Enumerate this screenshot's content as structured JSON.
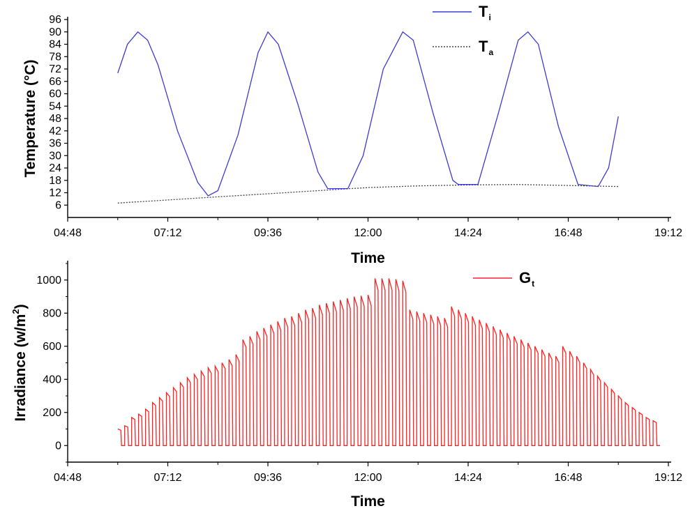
{
  "chart_data": [
    {
      "type": "line",
      "xlabel": "Time",
      "ylabel": "Temperature (°C)",
      "xlim": [
        "04:48",
        "19:12"
      ],
      "ylim": [
        0,
        96
      ],
      "x_ticks": [
        "04:48",
        "07:12",
        "09:36",
        "12:00",
        "14:24",
        "16:48",
        "19:12"
      ],
      "y_ticks": [
        "6",
        "12",
        "18",
        "24",
        "30",
        "36",
        "42",
        "48",
        "54",
        "60",
        "66",
        "72",
        "78",
        "84",
        "90",
        "96"
      ],
      "legend_position": "top-right",
      "series": [
        {
          "name_main": "T",
          "name_sub": "i",
          "color": "#3b3bd6",
          "style": "solid",
          "points": [
            [
              "06:00",
              70
            ],
            [
              "06:14",
              84
            ],
            [
              "06:29",
              90
            ],
            [
              "06:43",
              86
            ],
            [
              "06:58",
              74
            ],
            [
              "07:26",
              42
            ],
            [
              "07:55",
              17
            ],
            [
              "08:10",
              10.5
            ],
            [
              "08:24",
              13
            ],
            [
              "08:53",
              40
            ],
            [
              "09:22",
              80
            ],
            [
              "09:36",
              90
            ],
            [
              "09:51",
              84
            ],
            [
              "10:19",
              55
            ],
            [
              "10:48",
              22
            ],
            [
              "11:02",
              14
            ],
            [
              "11:31",
              14
            ],
            [
              "11:53",
              30
            ],
            [
              "12:22",
              72
            ],
            [
              "12:50",
              90
            ],
            [
              "13:05",
              86
            ],
            [
              "13:34",
              50
            ],
            [
              "14:02",
              18
            ],
            [
              "14:10",
              16
            ],
            [
              "14:38",
              16
            ],
            [
              "15:07",
              50
            ],
            [
              "15:36",
              86
            ],
            [
              "15:50",
              90
            ],
            [
              "16:05",
              84
            ],
            [
              "16:34",
              44
            ],
            [
              "17:02",
              16
            ],
            [
              "17:31",
              15
            ],
            [
              "17:46",
              24
            ],
            [
              "18:00",
              49
            ]
          ]
        },
        {
          "name_main": "T",
          "name_sub": "a",
          "color": "#444444",
          "style": "dotted",
          "points": [
            [
              "06:00",
              7
            ],
            [
              "07:12",
              8.5
            ],
            [
              "08:24",
              10
            ],
            [
              "09:36",
              11.5
            ],
            [
              "10:48",
              13
            ],
            [
              "12:00",
              14.5
            ],
            [
              "13:12",
              15.3
            ],
            [
              "14:24",
              15.8
            ],
            [
              "15:36",
              16
            ],
            [
              "16:48",
              15.5
            ],
            [
              "18:00",
              15
            ]
          ]
        }
      ]
    },
    {
      "type": "line",
      "xlabel": "Time",
      "ylabel_main": "Irradiance (w/m",
      "ylabel_sup": "2",
      "ylabel_close": ")",
      "xlim": [
        "04:48",
        "19:12"
      ],
      "ylim": [
        -100,
        1100
      ],
      "x_ticks": [
        "04:48",
        "07:12",
        "09:36",
        "12:00",
        "14:24",
        "16:48",
        "19:12"
      ],
      "y_ticks": [
        "0",
        "200",
        "400",
        "600",
        "800",
        "1000"
      ],
      "legend_position": "top-right",
      "series": [
        {
          "name_main": "G",
          "name_sub": "t",
          "color": "#ff2020",
          "style": "solid",
          "pulse_start": "06:00",
          "pulse_interval_minutes": 10,
          "values": [
            100,
            120,
            170,
            190,
            220,
            260,
            290,
            320,
            350,
            380,
            410,
            430,
            450,
            470,
            480,
            500,
            520,
            550,
            640,
            660,
            690,
            710,
            730,
            750,
            770,
            780,
            800,
            820,
            830,
            850,
            860,
            870,
            880,
            890,
            900,
            905,
            910,
            1010,
            1010,
            1010,
            1005,
            995,
            820,
            810,
            800,
            790,
            780,
            770,
            840,
            820,
            800,
            780,
            760,
            740,
            720,
            700,
            680,
            660,
            640,
            620,
            600,
            580,
            560,
            540,
            600,
            570,
            540,
            500,
            460,
            420,
            380,
            340,
            300,
            260,
            230,
            200,
            170,
            150
          ]
        }
      ]
    }
  ]
}
